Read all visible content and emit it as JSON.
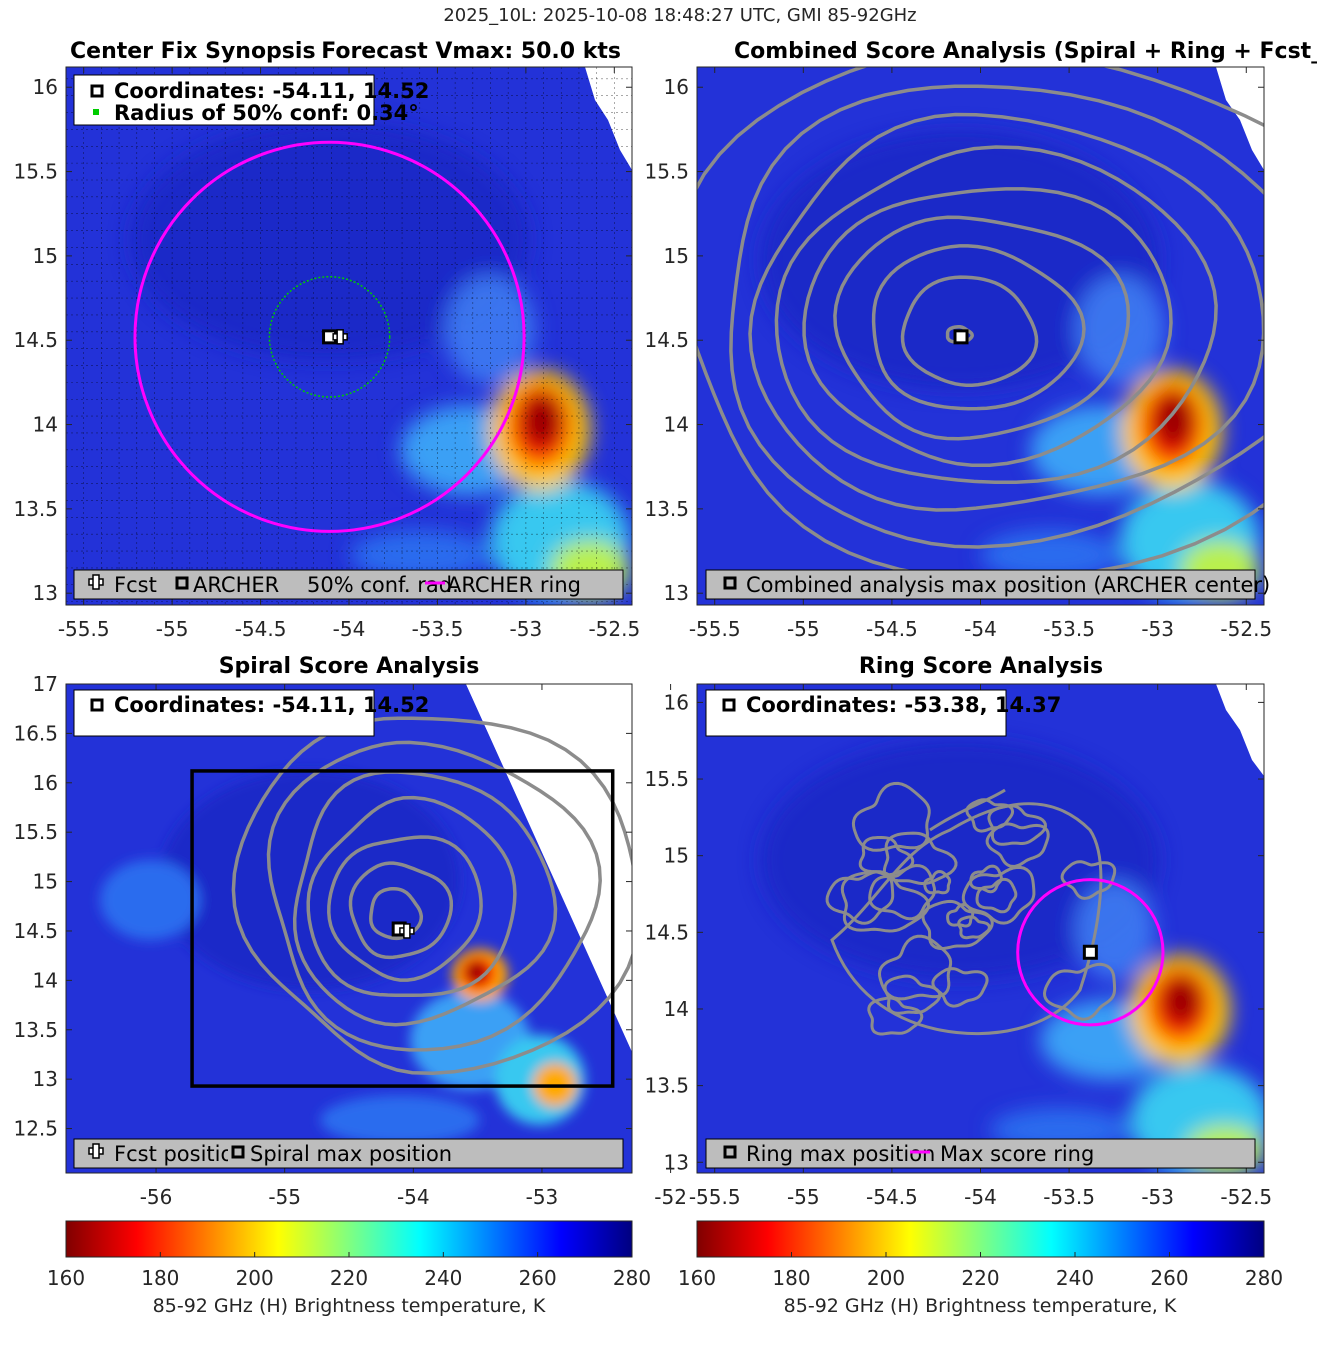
{
  "figure_title": "2025_10L: 2025-10-08 18:48:27 UTC, GMI 85-92GHz",
  "colors": {
    "ring": "#ff00ff",
    "conf_circle": "#00cc00",
    "contour": "#8c8c8c",
    "legend_bg": "#bdbdbd",
    "box": "#000000"
  },
  "colorbar": {
    "label": "85-92 GHz (H) Brightness temperature, K",
    "ticks": [
      160,
      180,
      200,
      220,
      240,
      260,
      280
    ],
    "range": [
      160,
      280
    ]
  },
  "chart_data": [
    {
      "type": "heatmap",
      "panel": "center_fix",
      "title_left": "Center Fix Synopsis",
      "title_right": "Forecast Vmax: 50.0 kts",
      "xlim": [
        -55.6,
        -52.4
      ],
      "ylim": [
        12.93,
        16.12
      ],
      "xticks": [
        -55.5,
        -55,
        -54.5,
        -54,
        -53.5,
        -53,
        -52.5
      ],
      "yticks": [
        13,
        13.5,
        14,
        14.5,
        15,
        15.5,
        16
      ],
      "grid": true,
      "info_lines": [
        "Coordinates: -54.11, 14.52",
        "Radius of 50% conf: 0.34°"
      ],
      "legend_items": [
        "Fcst",
        "ARCHER",
        "50% conf. rad.",
        "ARCHER ring"
      ],
      "archer_center": [
        -54.11,
        14.52
      ],
      "fcst_position": [
        -54.05,
        14.52
      ],
      "conf_radius_deg": 0.34,
      "ring_radius_deg": 1.1,
      "cold_cores": [
        {
          "lon": -52.95,
          "lat": 13.95,
          "min_tb": 170
        }
      ]
    },
    {
      "type": "heatmap",
      "panel": "combined",
      "title": "Combined Score Analysis (Spiral + Ring + Fcst_Pe",
      "xlim": [
        -55.6,
        -52.4
      ],
      "ylim": [
        12.93,
        16.12
      ],
      "xticks": [
        -55.5,
        -55,
        -54.5,
        -54,
        -53.5,
        -53,
        -52.5
      ],
      "yticks": [
        13,
        13.5,
        14,
        14.5,
        15,
        15.5,
        16
      ],
      "legend_items": [
        "Combined analysis max position (ARCHER center)"
      ],
      "max_position": [
        -54.11,
        14.52
      ],
      "contour_levels": 8
    },
    {
      "type": "heatmap",
      "panel": "spiral",
      "title": "Spiral Score Analysis",
      "xlim": [
        -56.7,
        -52.3
      ],
      "ylim": [
        12.05,
        17.0
      ],
      "xticks": [
        -56,
        -55,
        -54,
        -53,
        -52
      ],
      "yticks": [
        12.5,
        13,
        13.5,
        14,
        14.5,
        15,
        15.5,
        16,
        16.5,
        17
      ],
      "info_lines": [
        "Coordinates: -54.11, 14.52"
      ],
      "legend_items": [
        "Fcst position",
        "Spiral max position"
      ],
      "max_position": [
        -54.11,
        14.52
      ],
      "fcst_position": [
        -54.05,
        14.5
      ],
      "search_box": {
        "lon": [
          -55.72,
          -52.45
        ],
        "lat": [
          12.93,
          16.12
        ]
      },
      "contour_levels": 7
    },
    {
      "type": "heatmap",
      "panel": "ring",
      "title": "Ring Score Analysis",
      "xlim": [
        -55.6,
        -52.4
      ],
      "ylim": [
        12.93,
        16.12
      ],
      "xticks": [
        -55.5,
        -55,
        -54.5,
        -54,
        -53.5,
        -53,
        -52.5
      ],
      "yticks": [
        13,
        13.5,
        14,
        14.5,
        15,
        15.5,
        16
      ],
      "info_lines": [
        "Coordinates: -53.38, 14.37"
      ],
      "legend_items": [
        "Ring max position",
        "Max score ring"
      ],
      "max_position": [
        -53.38,
        14.37
      ],
      "ring_radius_deg": 0.41
    }
  ]
}
